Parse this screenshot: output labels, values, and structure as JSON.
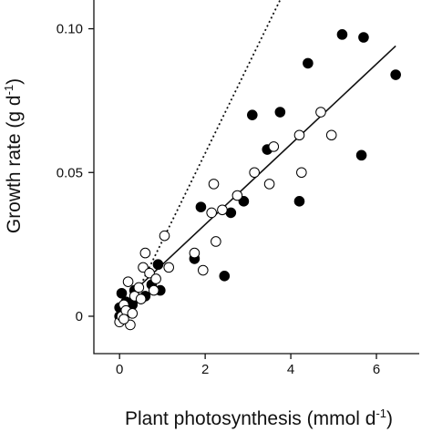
{
  "chart_data": {
    "type": "scatter",
    "title": "",
    "xlabel": "Plant photosynthesis (mmol d",
    "xlabel_sup": "-1",
    "xlabel_close": ")",
    "ylabel": "Growth rate (g d",
    "ylabel_sup": "-1",
    "ylabel_close": ")",
    "xlim": [
      -0.6,
      7.0
    ],
    "ylim": [
      -0.013,
      0.11
    ],
    "xticks": [
      0,
      2,
      4,
      6
    ],
    "xtick_labels": [
      "0",
      "2",
      "4",
      "6"
    ],
    "yticks": [
      0,
      0.05,
      0.1
    ],
    "ytick_labels": [
      "0",
      "0.05",
      "0.10"
    ],
    "grid": false,
    "series": [
      {
        "marker": "filled-circle",
        "color": "#000000",
        "points": [
          [
            0.0,
            0.003
          ],
          [
            0.05,
            0.008
          ],
          [
            0.1,
            0.001
          ],
          [
            0.15,
            0.005
          ],
          [
            0.25,
            0.002
          ],
          [
            0.3,
            0.004
          ],
          [
            0.35,
            0.009
          ],
          [
            0.5,
            0.006
          ],
          [
            0.6,
            0.007
          ],
          [
            0.75,
            0.011
          ],
          [
            0.9,
            0.018
          ],
          [
            0.95,
            0.009
          ],
          [
            1.75,
            0.02
          ],
          [
            1.9,
            0.038
          ],
          [
            2.45,
            0.014
          ],
          [
            2.6,
            0.036
          ],
          [
            2.9,
            0.04
          ],
          [
            3.1,
            0.07
          ],
          [
            3.45,
            0.058
          ],
          [
            3.75,
            0.071
          ],
          [
            4.2,
            0.04
          ],
          [
            4.4,
            0.088
          ],
          [
            5.2,
            0.098
          ],
          [
            5.65,
            0.056
          ],
          [
            5.7,
            0.097
          ],
          [
            6.45,
            0.084
          ],
          [
            0.0,
            0.0
          ],
          [
            0.2,
            0.003
          ]
        ]
      },
      {
        "marker": "open-circle",
        "color": "#000000",
        "points": [
          [
            0.0,
            -0.002
          ],
          [
            0.05,
            0.0
          ],
          [
            0.1,
            0.004
          ],
          [
            0.15,
            0.002
          ],
          [
            0.2,
            0.012
          ],
          [
            0.25,
            -0.003
          ],
          [
            0.35,
            0.007
          ],
          [
            0.45,
            0.01
          ],
          [
            0.5,
            0.006
          ],
          [
            0.55,
            0.017
          ],
          [
            0.6,
            0.022
          ],
          [
            0.7,
            0.015
          ],
          [
            0.8,
            0.009
          ],
          [
            0.85,
            0.013
          ],
          [
            1.05,
            0.028
          ],
          [
            1.15,
            0.017
          ],
          [
            1.75,
            0.022
          ],
          [
            1.95,
            0.016
          ],
          [
            2.15,
            0.036
          ],
          [
            2.2,
            0.046
          ],
          [
            2.25,
            0.026
          ],
          [
            2.4,
            0.037
          ],
          [
            2.75,
            0.042
          ],
          [
            3.15,
            0.05
          ],
          [
            3.5,
            0.046
          ],
          [
            3.6,
            0.059
          ],
          [
            4.2,
            0.063
          ],
          [
            4.25,
            0.05
          ],
          [
            4.7,
            0.071
          ],
          [
            4.95,
            0.063
          ],
          [
            0.3,
            0.001
          ],
          [
            0.1,
            -0.001
          ]
        ]
      }
    ],
    "lines": [
      {
        "style": "solid",
        "x": [
          0.5,
          6.45
        ],
        "y": [
          0.011,
          0.094
        ]
      },
      {
        "style": "dotted",
        "x": [
          0.5,
          3.75
        ],
        "y": [
          0.011,
          0.11
        ]
      }
    ]
  }
}
